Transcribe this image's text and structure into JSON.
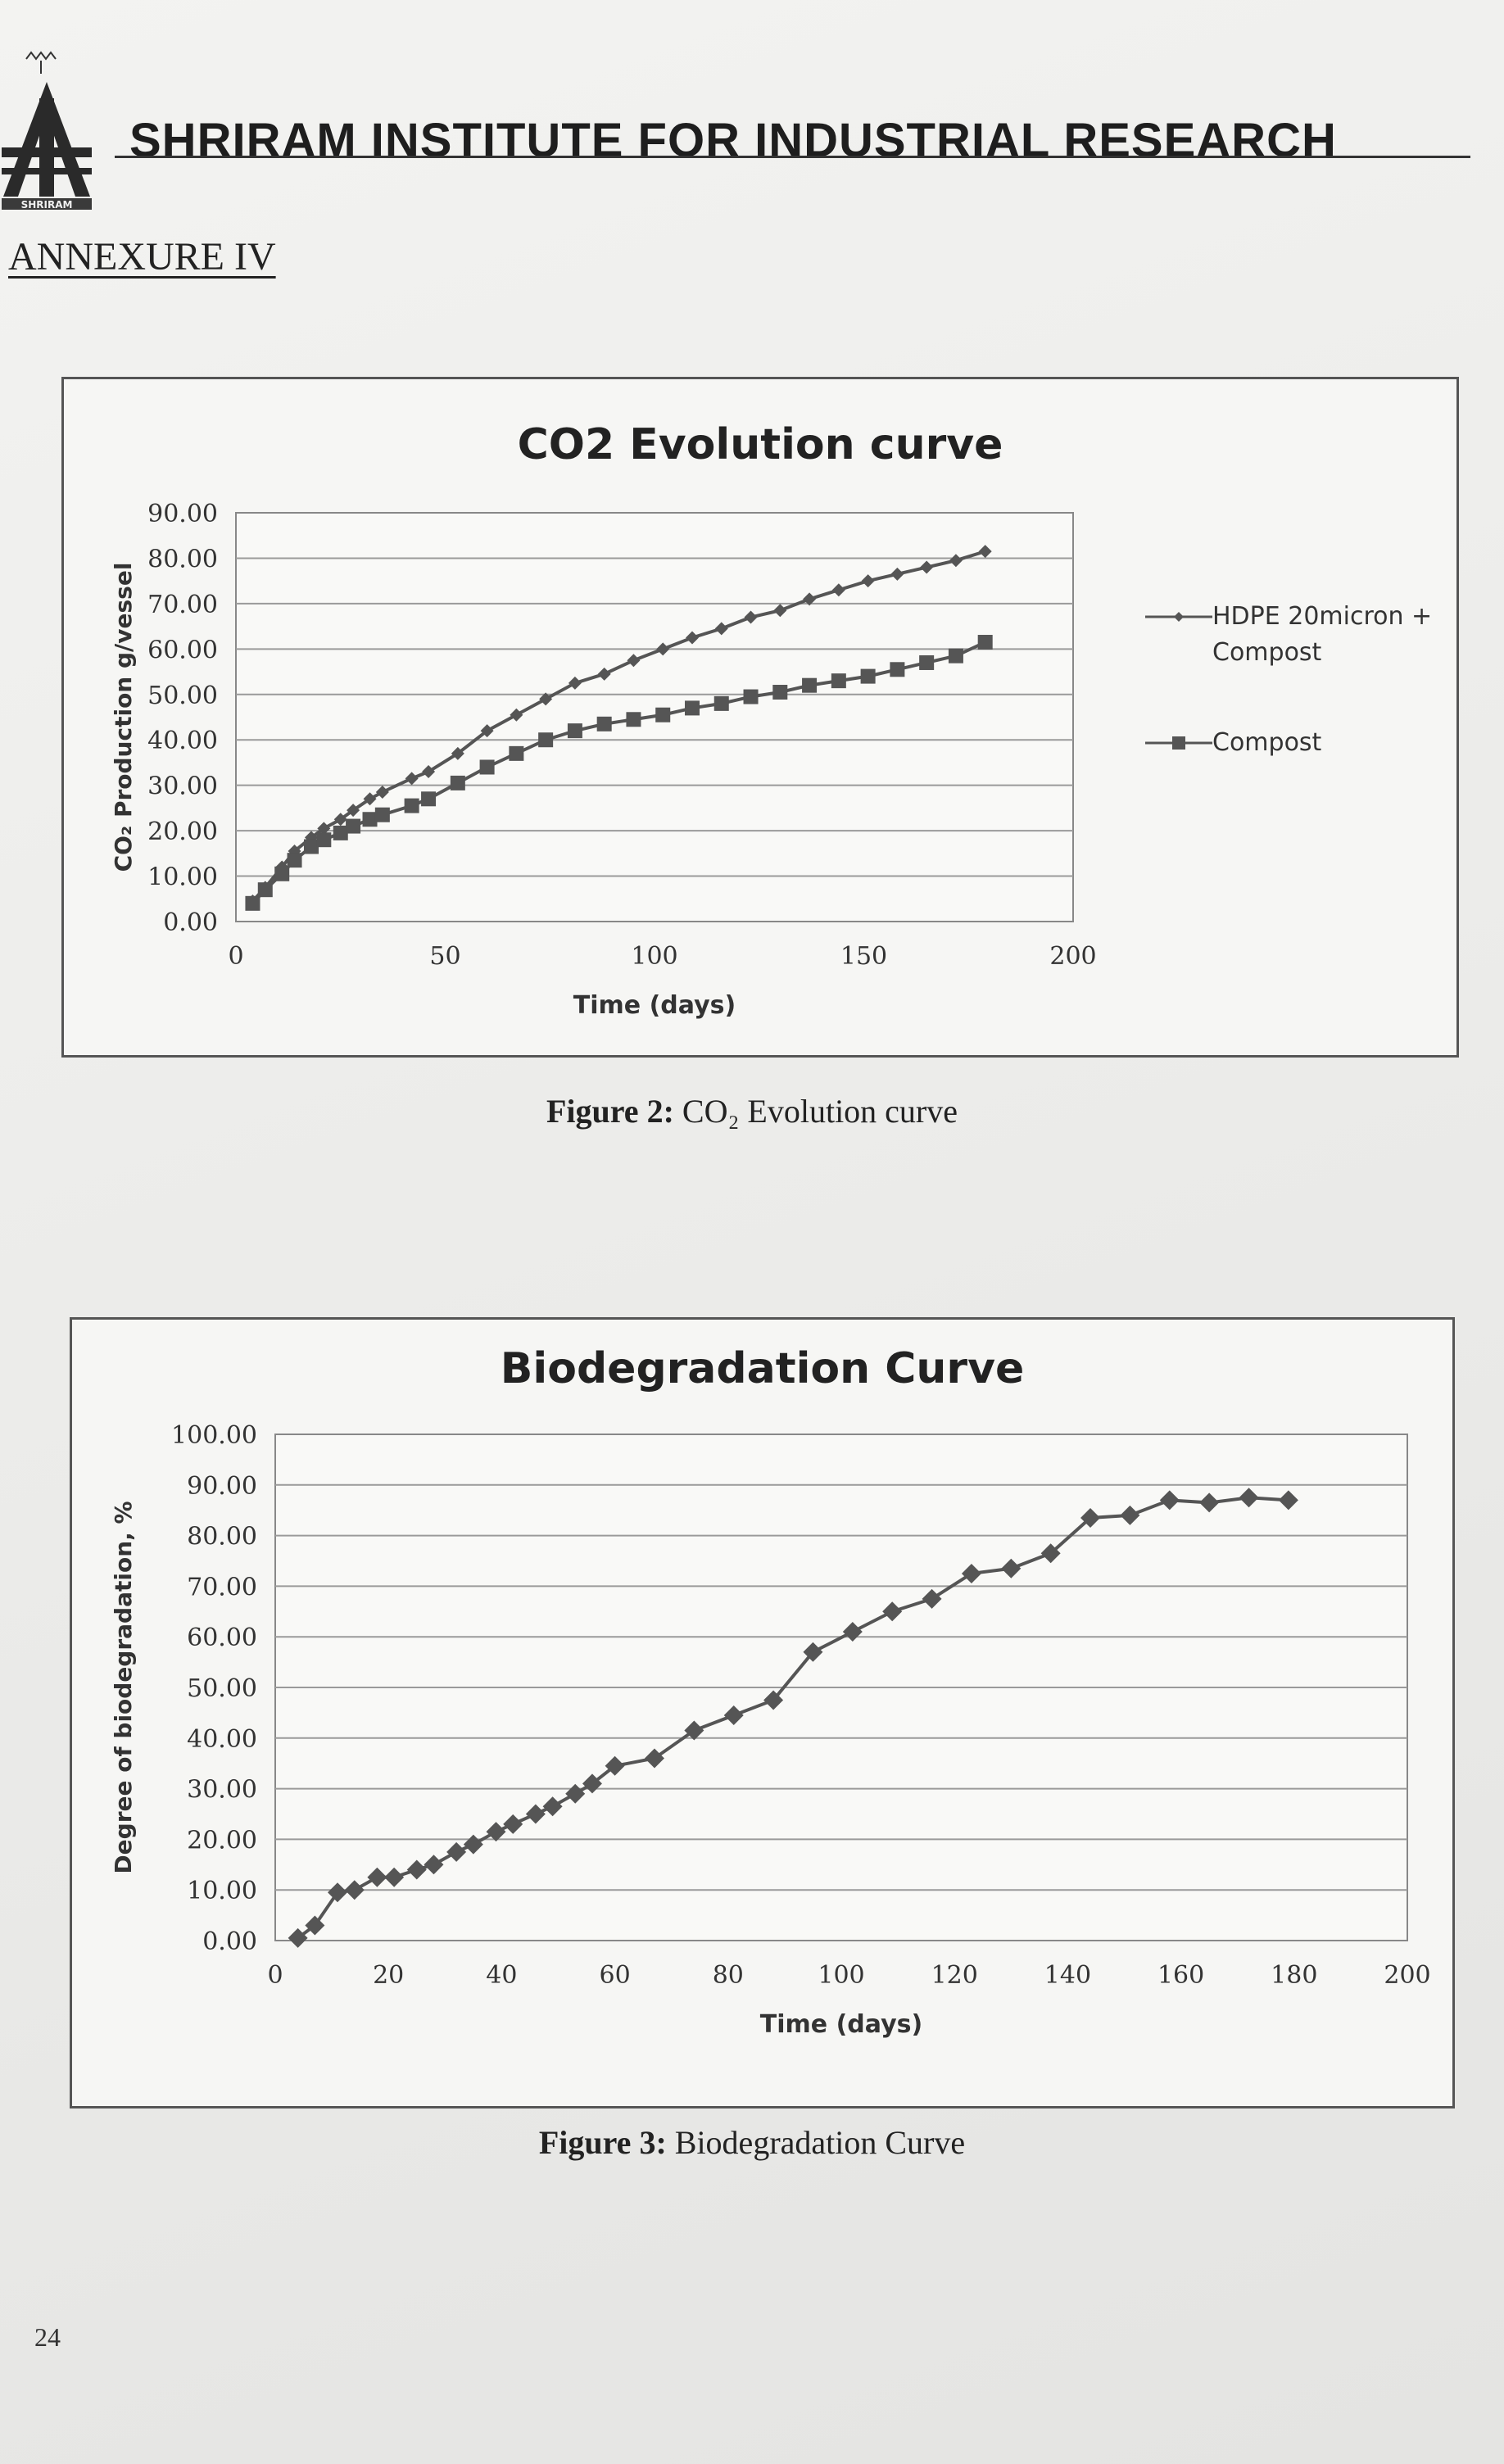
{
  "header": {
    "title": "SHRIRAM INSTITUTE FOR INDUSTRIAL RESEARCH",
    "logo_icon": "shriram-institute-logo",
    "logo_text": "SHRIRAM"
  },
  "annexure": "ANNEXURE IV",
  "page_number": "24",
  "captions": {
    "figure2_prefix": "Figure 2:",
    "figure2_text": "CO₂ Evolution curve",
    "figure3_prefix": "Figure 3:",
    "figure3_text": "Biodegradation Curve"
  },
  "chart_data": [
    {
      "type": "line",
      "title": "CO2 Evolution curve",
      "xlabel": "Time (days)",
      "ylabel": "CO₂ Production g/vessel",
      "xlim": [
        0,
        200
      ],
      "ylim": [
        0,
        90
      ],
      "xticks": [
        "0",
        "50",
        "100",
        "150",
        "200"
      ],
      "yticks": [
        "0.00",
        "10.00",
        "20.00",
        "30.00",
        "40.00",
        "50.00",
        "60.00",
        "70.00",
        "80.00",
        "90.00"
      ],
      "grid": true,
      "legend_position": "right",
      "series": [
        {
          "name": "HDPE 20micron + Compost",
          "marker": "diamond",
          "color": "#555555",
          "x": [
            4,
            7,
            11,
            14,
            18,
            21,
            25,
            28,
            32,
            35,
            42,
            46,
            53,
            60,
            67,
            74,
            81,
            88,
            95,
            102,
            109,
            116,
            123,
            130,
            137,
            144,
            151,
            158,
            165,
            172,
            179
          ],
          "y": [
            4.5,
            7.5,
            12.0,
            15.5,
            18.5,
            20.5,
            22.5,
            24.5,
            27.0,
            28.5,
            31.5,
            33.0,
            37.0,
            42.0,
            45.5,
            49.0,
            52.5,
            54.5,
            57.5,
            60.0,
            62.5,
            64.5,
            67.0,
            68.5,
            71.0,
            73.0,
            75.0,
            76.5,
            78.0,
            79.5,
            81.5
          ]
        },
        {
          "name": "Compost",
          "marker": "square",
          "color": "#555555",
          "x": [
            4,
            7,
            11,
            14,
            18,
            21,
            25,
            28,
            32,
            35,
            42,
            46,
            53,
            60,
            67,
            74,
            81,
            88,
            95,
            102,
            109,
            116,
            123,
            130,
            137,
            144,
            151,
            158,
            165,
            172,
            179
          ],
          "y": [
            4.0,
            7.0,
            10.5,
            13.5,
            16.5,
            18.0,
            19.5,
            21.0,
            22.5,
            23.5,
            25.5,
            27.0,
            30.5,
            34.0,
            37.0,
            40.0,
            42.0,
            43.5,
            44.5,
            45.5,
            47.0,
            48.0,
            49.5,
            50.5,
            52.0,
            53.0,
            54.0,
            55.5,
            57.0,
            58.5,
            61.5
          ]
        }
      ]
    },
    {
      "type": "line",
      "title": "Biodegradation Curve",
      "xlabel": "Time (days)",
      "ylabel": "Degree of biodegradation, %",
      "xlim": [
        0,
        200
      ],
      "ylim": [
        0,
        100
      ],
      "xticks": [
        "0",
        "20",
        "40",
        "60",
        "80",
        "100",
        "120",
        "140",
        "160",
        "180",
        "200"
      ],
      "yticks": [
        "0.00",
        "10.00",
        "20.00",
        "30.00",
        "40.00",
        "50.00",
        "60.00",
        "70.00",
        "80.00",
        "90.00",
        "100.00"
      ],
      "grid": true,
      "series": [
        {
          "marker": "diamond",
          "color": "#555555",
          "x": [
            4,
            7,
            11,
            14,
            18,
            21,
            25,
            28,
            32,
            35,
            39,
            42,
            46,
            49,
            53,
            56,
            60,
            67,
            74,
            81,
            88,
            95,
            102,
            109,
            116,
            123,
            130,
            137,
            144,
            151,
            158,
            165,
            172,
            179
          ],
          "y": [
            0.5,
            3.0,
            9.5,
            10.0,
            12.5,
            12.5,
            14.0,
            15.0,
            17.5,
            19.0,
            21.5,
            23.0,
            25.0,
            26.5,
            29.0,
            31.0,
            34.5,
            36.0,
            41.5,
            44.5,
            47.5,
            57.0,
            61.0,
            65.0,
            67.5,
            72.5,
            73.5,
            76.5,
            83.5,
            84.0,
            87.0,
            86.5,
            87.5,
            87.0
          ]
        }
      ]
    }
  ]
}
